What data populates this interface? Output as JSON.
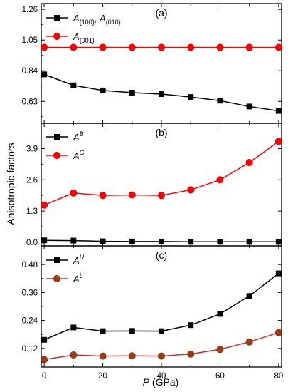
{
  "chart_data": [
    {
      "panel": "(a)",
      "type": "line",
      "x": [
        0,
        10,
        20,
        30,
        40,
        50,
        60,
        70,
        80
      ],
      "xlim": [
        -1,
        81
      ],
      "ylim": [
        0.48,
        1.3
      ],
      "yticks": [
        "0.63",
        "0.84",
        "1.05",
        "1.26"
      ],
      "ytick_values": [
        0.63,
        0.84,
        1.05,
        1.26
      ],
      "series": [
        {
          "name": "A{100}, A{010}",
          "legend_main": "A",
          "legend_sub1": "{100}",
          "legend_sep": ", ",
          "legend_sub2": "{010}",
          "marker": "square",
          "color": "#000000",
          "values": [
            0.815,
            0.74,
            0.705,
            0.69,
            0.68,
            0.66,
            0.635,
            0.595,
            0.565
          ]
        },
        {
          "name": "A{001}",
          "legend_main": "A",
          "legend_sub1": "{001}",
          "marker": "circle",
          "color": "#ff0000",
          "edge": "#cc0000",
          "values": [
            1.0,
            1.0,
            1.0,
            1.0,
            1.0,
            1.0,
            1.0,
            1.0,
            1.0
          ]
        }
      ]
    },
    {
      "panel": "(b)",
      "type": "line",
      "x": [
        0,
        10,
        20,
        30,
        40,
        50,
        60,
        70,
        80
      ],
      "xlim": [
        -1,
        81
      ],
      "ylim": [
        -0.15,
        4.95
      ],
      "yticks": [
        "0.0",
        "1.3",
        "2.6",
        "3.9"
      ],
      "ytick_values": [
        0.0,
        1.3,
        2.6,
        3.9
      ],
      "series": [
        {
          "name": "AB",
          "legend_main": "A",
          "legend_sup": "B",
          "marker": "square",
          "color": "#000000",
          "values": [
            0.08,
            0.07,
            0.04,
            0.03,
            0.03,
            0.02,
            0.02,
            0.02,
            0.02
          ]
        },
        {
          "name": "AG",
          "legend_main": "A",
          "legend_sup": "G",
          "marker": "circle",
          "color": "#ff0000",
          "edge": "#cc0000",
          "values": [
            1.55,
            2.05,
            1.95,
            1.97,
            1.95,
            2.18,
            2.6,
            3.32,
            4.2
          ]
        }
      ]
    },
    {
      "panel": "(c)",
      "type": "line",
      "x": [
        0,
        10,
        20,
        30,
        40,
        50,
        60,
        70,
        80
      ],
      "xlim": [
        -1,
        81
      ],
      "ylim": [
        0.04,
        0.56
      ],
      "yticks": [
        "0.12",
        "0.24",
        "0.36",
        "0.48"
      ],
      "ytick_values": [
        0.12,
        0.24,
        0.36,
        0.48
      ],
      "xticks": [
        "0",
        "20",
        "40",
        "60",
        "80"
      ],
      "xtick_values": [
        0,
        20,
        40,
        60,
        80
      ],
      "series": [
        {
          "name": "AU",
          "legend_main": "A",
          "legend_sup": "U",
          "marker": "square",
          "color": "#000000",
          "values": [
            0.157,
            0.21,
            0.194,
            0.195,
            0.194,
            0.22,
            0.268,
            0.345,
            0.442
          ]
        },
        {
          "name": "AL",
          "legend_main": "A",
          "legend_sup": "L",
          "marker": "circle",
          "color": "#d62a2a",
          "fill": "#9b3d14",
          "edge": "#7a2c0c",
          "values": [
            0.072,
            0.092,
            0.087,
            0.088,
            0.087,
            0.096,
            0.116,
            0.148,
            0.188
          ]
        }
      ]
    }
  ],
  "axes": {
    "ylabel": "Anisotropic factors",
    "xlabel_var": "P",
    "xlabel_unit": " (GPa)"
  },
  "colors": {
    "black": "#000000",
    "red": "#ff0000",
    "brown": "#9b3d14"
  }
}
